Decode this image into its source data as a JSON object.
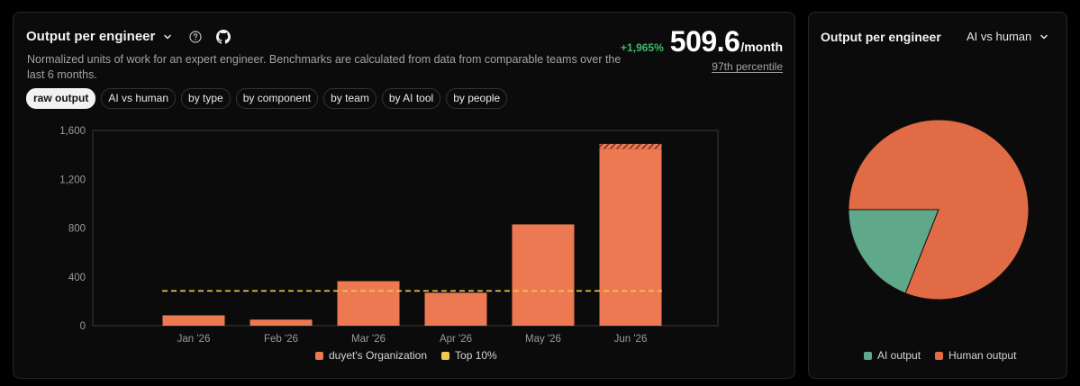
{
  "left": {
    "title": "Output per engineer",
    "description": "Normalized units of work for an expert engineer. Benchmarks are calculated from data from comparable teams over the last 6 months.",
    "stat": {
      "delta": "+1,965%",
      "value": "509.6",
      "unit": "/month",
      "percentile": "97th percentile"
    },
    "tabs": [
      {
        "label": "raw output",
        "active": true
      },
      {
        "label": "AI vs human",
        "active": false
      },
      {
        "label": "by type",
        "active": false
      },
      {
        "label": "by component",
        "active": false
      },
      {
        "label": "by team",
        "active": false
      },
      {
        "label": "by AI tool",
        "active": false
      },
      {
        "label": "by people",
        "active": false
      }
    ],
    "legend": [
      {
        "label": "duyet's Organization",
        "color": "#ec7952"
      },
      {
        "label": "Top 10%",
        "color": "#f2c94c"
      }
    ]
  },
  "right": {
    "title": "Output per engineer",
    "select": "AI vs human",
    "legend": [
      {
        "label": "AI output",
        "color": "#5fa88a"
      },
      {
        "label": "Human output",
        "color": "#e06b45"
      }
    ]
  },
  "chart_data": [
    {
      "type": "bar",
      "categories": [
        "Jan '26",
        "Feb '26",
        "Mar '26",
        "Apr '26",
        "May '26",
        "Jun '26"
      ],
      "series": [
        {
          "name": "duyet's Organization",
          "values": [
            85,
            50,
            365,
            270,
            830,
            1450
          ],
          "color": "#ec7952"
        }
      ],
      "extra_hatched_top": {
        "category": "Jun '26",
        "value_from": 1450,
        "value_to": 1490
      },
      "reference_line": {
        "name": "Top 10%",
        "value": 285,
        "style": "dashed",
        "color": "#f2c94c"
      },
      "y_ticks": [
        0,
        400,
        800,
        1200,
        1600
      ],
      "y_tick_labels": [
        "0",
        "400",
        "800",
        "1,200",
        "1,600"
      ],
      "ylim": [
        0,
        1600
      ],
      "grid": false
    },
    {
      "type": "pie",
      "labels": [
        "AI output",
        "Human output"
      ],
      "values": [
        19,
        81
      ],
      "colors": [
        "#5fa88a",
        "#e06b45"
      ]
    }
  ]
}
